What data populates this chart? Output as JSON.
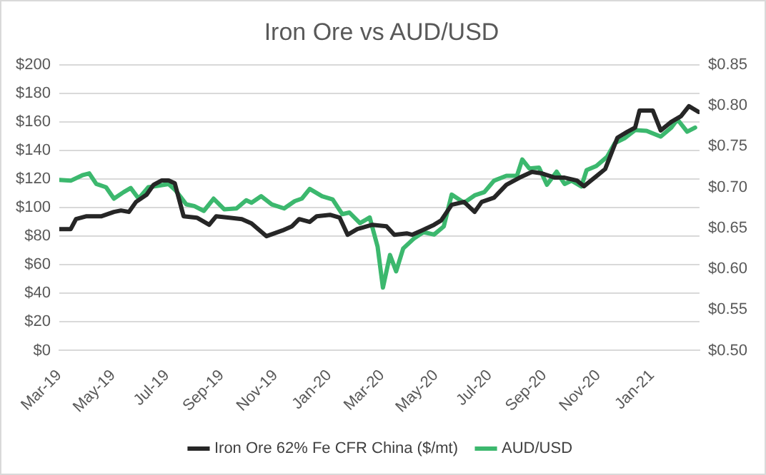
{
  "chart_data": {
    "type": "line",
    "title": "Iron Ore vs AUD/USD",
    "xlim": [
      "2019-03-01",
      "2021-02-24"
    ],
    "xticks": [
      {
        "value": "2019-03-01",
        "label": "Mar-19"
      },
      {
        "value": "2019-05-01",
        "label": "May-19"
      },
      {
        "value": "2019-07-01",
        "label": "Jul-19"
      },
      {
        "value": "2019-09-01",
        "label": "Sep-19"
      },
      {
        "value": "2019-11-01",
        "label": "Nov-19"
      },
      {
        "value": "2020-01-01",
        "label": "Jan-20"
      },
      {
        "value": "2020-03-01",
        "label": "Mar-20"
      },
      {
        "value": "2020-05-01",
        "label": "May-20"
      },
      {
        "value": "2020-07-01",
        "label": "Jul-20"
      },
      {
        "value": "2020-09-01",
        "label": "Sep-20"
      },
      {
        "value": "2020-11-01",
        "label": "Nov-20"
      },
      {
        "value": "2021-01-01",
        "label": "Jan-21"
      }
    ],
    "ylim": [
      0,
      200
    ],
    "yticks": [
      {
        "value": 0,
        "label": "$0"
      },
      {
        "value": 20,
        "label": "$20"
      },
      {
        "value": 40,
        "label": "$40"
      },
      {
        "value": 60,
        "label": "$60"
      },
      {
        "value": 80,
        "label": "$80"
      },
      {
        "value": 100,
        "label": "$100"
      },
      {
        "value": 120,
        "label": "$120"
      },
      {
        "value": 140,
        "label": "$140"
      },
      {
        "value": 160,
        "label": "$160"
      },
      {
        "value": 180,
        "label": "$180"
      },
      {
        "value": 200,
        "label": "$200"
      }
    ],
    "y2lim": [
      0.5,
      0.85
    ],
    "y2ticks": [
      {
        "value": 0.5,
        "label": "$0.50"
      },
      {
        "value": 0.55,
        "label": "$0.55"
      },
      {
        "value": 0.6,
        "label": "$0.60"
      },
      {
        "value": 0.65,
        "label": "$0.65"
      },
      {
        "value": 0.7,
        "label": "$0.70"
      },
      {
        "value": 0.75,
        "label": "$0.75"
      },
      {
        "value": 0.8,
        "label": "$0.80"
      },
      {
        "value": 0.85,
        "label": "$0.85"
      }
    ],
    "grid": "y",
    "legend": "bottom",
    "marker": "none",
    "line_style": "solid",
    "series": [
      {
        "name": "Iron Ore 62% Fe CFR China ($/mt)",
        "color": "#262626",
        "x": [
          "2019-03-01",
          "2019-03-14",
          "2019-03-20",
          "2019-04-01",
          "2019-04-18",
          "2019-05-02",
          "2019-05-10",
          "2019-05-19",
          "2019-05-27",
          "2019-06-08",
          "2019-06-16",
          "2019-06-25",
          "2019-07-03",
          "2019-07-10",
          "2019-07-20",
          "2019-08-04",
          "2019-08-18",
          "2019-08-26",
          "2019-09-10",
          "2019-09-24",
          "2019-10-05",
          "2019-10-22",
          "2019-11-09",
          "2019-11-20",
          "2019-11-28",
          "2019-12-10",
          "2019-12-18",
          "2020-01-02",
          "2020-01-13",
          "2020-01-22",
          "2020-02-02",
          "2020-02-19",
          "2020-03-06",
          "2020-03-15",
          "2020-03-29",
          "2020-04-04",
          "2020-04-15",
          "2020-04-29",
          "2020-05-07",
          "2020-05-19",
          "2020-06-02",
          "2020-06-14",
          "2020-06-22",
          "2020-07-06",
          "2020-07-20",
          "2020-08-04",
          "2020-08-18",
          "2020-08-29",
          "2020-09-13",
          "2020-09-24",
          "2020-10-08",
          "2020-10-16",
          "2020-10-30",
          "2020-11-09",
          "2020-11-23",
          "2020-12-04",
          "2020-12-13",
          "2020-12-18",
          "2021-01-02",
          "2021-01-11",
          "2021-01-23",
          "2021-02-03",
          "2021-02-12",
          "2021-02-23"
        ],
        "values": [
          85,
          85,
          92,
          94,
          94,
          97,
          98,
          97,
          104,
          109,
          116,
          119,
          119,
          117,
          94,
          93,
          88,
          94,
          93,
          92,
          89,
          80,
          84,
          87,
          92,
          90,
          94,
          95,
          93,
          81,
          85,
          88,
          87,
          81,
          82,
          81,
          84,
          88,
          91,
          102,
          104,
          97,
          104,
          107,
          116,
          121,
          125,
          124,
          121,
          121,
          119,
          115,
          122,
          127,
          149,
          153,
          156,
          168,
          168,
          154,
          160,
          164,
          171,
          167
        ]
      },
      {
        "name": "AUD/USD",
        "color": "#3cb86e",
        "axis": "y2",
        "x": [
          "2019-03-01",
          "2019-03-14",
          "2019-03-28",
          "2019-04-04",
          "2019-04-12",
          "2019-04-23",
          "2019-05-02",
          "2019-05-13",
          "2019-05-21",
          "2019-05-30",
          "2019-06-10",
          "2019-06-22",
          "2019-07-03",
          "2019-07-11",
          "2019-07-23",
          "2019-08-01",
          "2019-08-12",
          "2019-08-23",
          "2019-09-04",
          "2019-09-18",
          "2019-09-29",
          "2019-10-05",
          "2019-10-16",
          "2019-10-28",
          "2019-11-11",
          "2019-11-23",
          "2019-12-01",
          "2019-12-10",
          "2019-12-24",
          "2020-01-05",
          "2020-01-16",
          "2020-01-24",
          "2020-02-05",
          "2020-02-16",
          "2020-02-25",
          "2020-03-02",
          "2020-03-10",
          "2020-03-17",
          "2020-03-25",
          "2020-04-06",
          "2020-04-17",
          "2020-04-29",
          "2020-05-10",
          "2020-05-19",
          "2020-06-02",
          "2020-06-14",
          "2020-06-25",
          "2020-07-06",
          "2020-07-20",
          "2020-08-01",
          "2020-08-07",
          "2020-08-15",
          "2020-08-26",
          "2020-09-04",
          "2020-09-15",
          "2020-09-24",
          "2020-10-02",
          "2020-10-13",
          "2020-10-19",
          "2020-10-30",
          "2020-11-11",
          "2020-11-20",
          "2020-12-01",
          "2020-12-13",
          "2020-12-26",
          "2021-01-11",
          "2021-01-23",
          "2021-01-30",
          "2021-02-10",
          "2021-02-19"
        ],
        "values": [
          0.709,
          0.708,
          0.715,
          0.717,
          0.704,
          0.7,
          0.686,
          0.694,
          0.699,
          0.686,
          0.7,
          0.702,
          0.704,
          0.696,
          0.679,
          0.677,
          0.671,
          0.686,
          0.673,
          0.674,
          0.684,
          0.681,
          0.689,
          0.679,
          0.674,
          0.683,
          0.686,
          0.698,
          0.689,
          0.685,
          0.667,
          0.669,
          0.656,
          0.663,
          0.627,
          0.577,
          0.617,
          0.597,
          0.625,
          0.637,
          0.645,
          0.642,
          0.652,
          0.691,
          0.681,
          0.69,
          0.694,
          0.708,
          0.714,
          0.714,
          0.734,
          0.723,
          0.724,
          0.703,
          0.719,
          0.704,
          0.708,
          0.701,
          0.721,
          0.726,
          0.737,
          0.754,
          0.76,
          0.77,
          0.769,
          0.762,
          0.773,
          0.783,
          0.768,
          0.773
        ]
      }
    ]
  }
}
